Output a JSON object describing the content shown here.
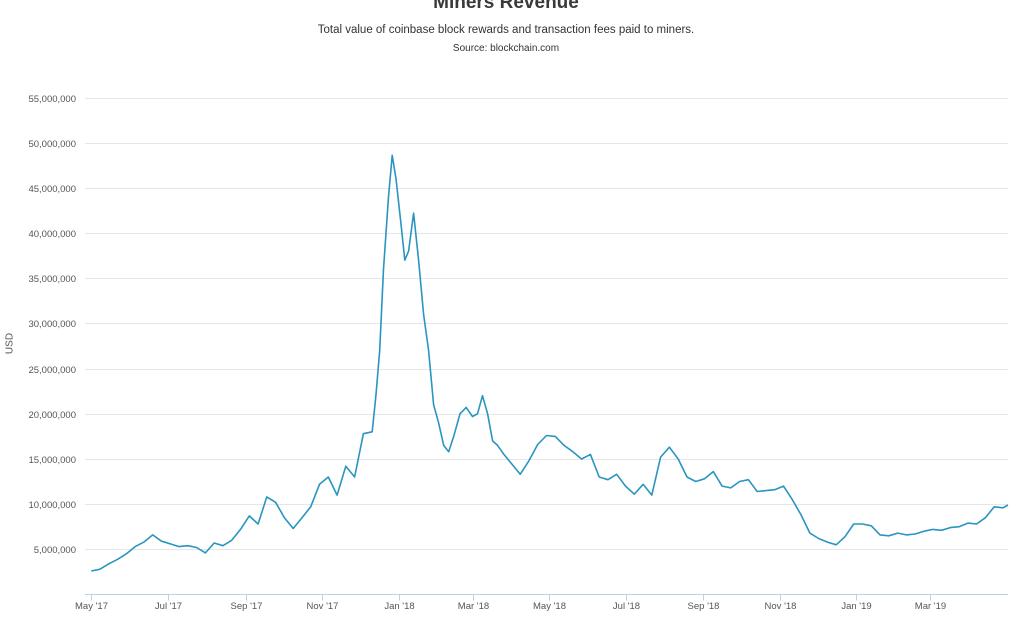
{
  "chart_data": {
    "type": "line",
    "title": "Miners Revenue",
    "subtitle": "Total value of coinbase block rewards and transaction fees paid to miners.",
    "source": "Source: blockchain.com",
    "ylabel": "USD",
    "ylim": [
      0,
      55000000
    ],
    "y_ticks": [
      5000000,
      10000000,
      15000000,
      20000000,
      25000000,
      30000000,
      35000000,
      40000000,
      45000000,
      50000000,
      55000000
    ],
    "y_tick_labels": [
      "5,000,000",
      "10,000,000",
      "15,000,000",
      "20,000,000",
      "25,000,000",
      "30,000,000",
      "35,000,000",
      "40,000,000",
      "45,000,000",
      "50,000,000",
      "55,000,000"
    ],
    "x_range": [
      "2017-04-26",
      "2019-05-02"
    ],
    "x_ticks": [
      "2017-05-01",
      "2017-07-01",
      "2017-09-01",
      "2017-11-01",
      "2018-01-01",
      "2018-03-01",
      "2018-05-01",
      "2018-07-01",
      "2018-09-01",
      "2018-11-01",
      "2019-01-01",
      "2019-03-01"
    ],
    "x_tick_labels": [
      "May '17",
      "Jul '17",
      "Sep '17",
      "Nov '17",
      "Jan '18",
      "Mar '18",
      "May '18",
      "Jul '18",
      "Sep '18",
      "Nov '18",
      "Jan '19",
      "Mar '19"
    ],
    "grid": true,
    "legend": "none",
    "line_color": "#2a95c0",
    "series": [
      {
        "x": [
          "2017-05-01",
          "2017-05-08",
          "2017-05-15",
          "2017-05-22",
          "2017-05-29",
          "2017-06-05",
          "2017-06-12",
          "2017-06-19",
          "2017-06-26",
          "2017-07-03",
          "2017-07-10",
          "2017-07-17",
          "2017-07-24",
          "2017-07-31",
          "2017-08-07",
          "2017-08-14",
          "2017-08-21",
          "2017-08-28",
          "2017-09-04",
          "2017-09-11",
          "2017-09-18",
          "2017-09-25",
          "2017-10-02",
          "2017-10-09",
          "2017-10-16",
          "2017-10-23",
          "2017-10-30",
          "2017-11-06",
          "2017-11-13",
          "2017-11-20",
          "2017-11-27",
          "2017-12-04",
          "2017-12-11",
          "2017-12-14",
          "2017-12-17",
          "2017-12-20",
          "2017-12-24",
          "2017-12-27",
          "2017-12-30",
          "2018-01-03",
          "2018-01-06",
          "2018-01-09",
          "2018-01-13",
          "2018-01-17",
          "2018-01-21",
          "2018-01-25",
          "2018-01-29",
          "2018-02-02",
          "2018-02-06",
          "2018-02-10",
          "2018-02-14",
          "2018-02-19",
          "2018-02-24",
          "2018-03-01",
          "2018-03-05",
          "2018-03-09",
          "2018-03-13",
          "2018-03-17",
          "2018-03-21",
          "2018-03-26",
          "2018-04-01",
          "2018-04-08",
          "2018-04-15",
          "2018-04-22",
          "2018-04-29",
          "2018-05-06",
          "2018-05-13",
          "2018-05-20",
          "2018-05-27",
          "2018-06-03",
          "2018-06-10",
          "2018-06-17",
          "2018-06-24",
          "2018-07-01",
          "2018-07-08",
          "2018-07-15",
          "2018-07-22",
          "2018-07-29",
          "2018-08-05",
          "2018-08-12",
          "2018-08-19",
          "2018-08-26",
          "2018-09-02",
          "2018-09-09",
          "2018-09-16",
          "2018-09-23",
          "2018-09-30",
          "2018-10-07",
          "2018-10-14",
          "2018-10-21",
          "2018-10-28",
          "2018-11-04",
          "2018-11-11",
          "2018-11-18",
          "2018-11-25",
          "2018-12-02",
          "2018-12-09",
          "2018-12-16",
          "2018-12-23",
          "2018-12-30",
          "2019-01-06",
          "2019-01-13",
          "2019-01-20",
          "2019-01-27",
          "2019-02-03",
          "2019-02-10",
          "2019-02-17",
          "2019-02-24",
          "2019-03-03",
          "2019-03-10",
          "2019-03-17",
          "2019-03-24",
          "2019-03-31",
          "2019-04-07",
          "2019-04-14",
          "2019-04-21",
          "2019-04-28",
          "2019-05-02"
        ],
        "values": [
          2600000,
          2800000,
          3400000,
          3900000,
          4500000,
          5300000,
          5800000,
          6600000,
          5900000,
          5600000,
          5300000,
          5400000,
          5200000,
          4600000,
          5700000,
          5400000,
          6000000,
          7200000,
          8700000,
          7800000,
          10800000,
          10200000,
          8500000,
          7300000,
          8500000,
          9700000,
          12200000,
          13000000,
          11000000,
          14200000,
          13000000,
          17800000,
          18000000,
          22000000,
          27000000,
          36000000,
          44000000,
          48600000,
          46000000,
          41000000,
          37000000,
          38000000,
          42200000,
          37000000,
          31000000,
          27000000,
          21000000,
          19000000,
          16500000,
          15800000,
          17500000,
          20000000,
          20700000,
          19700000,
          20000000,
          22000000,
          20000000,
          17000000,
          16500000,
          15500000,
          14500000,
          13300000,
          14800000,
          16600000,
          17600000,
          17500000,
          16500000,
          15800000,
          15000000,
          15500000,
          13000000,
          12700000,
          13300000,
          12000000,
          11100000,
          12200000,
          11000000,
          15200000,
          16300000,
          15000000,
          13000000,
          12500000,
          12800000,
          13600000,
          12000000,
          11800000,
          12500000,
          12700000,
          11400000,
          11500000,
          11600000,
          12000000,
          10500000,
          8800000,
          6800000,
          6200000,
          5800000,
          5500000,
          6400000,
          7800000,
          7800000,
          7600000,
          6600000,
          6500000,
          6800000,
          6600000,
          6700000,
          7000000,
          7200000,
          7100000,
          7400000,
          7500000,
          7900000,
          7800000,
          8500000,
          9700000,
          9600000,
          9900000
        ]
      }
    ]
  }
}
